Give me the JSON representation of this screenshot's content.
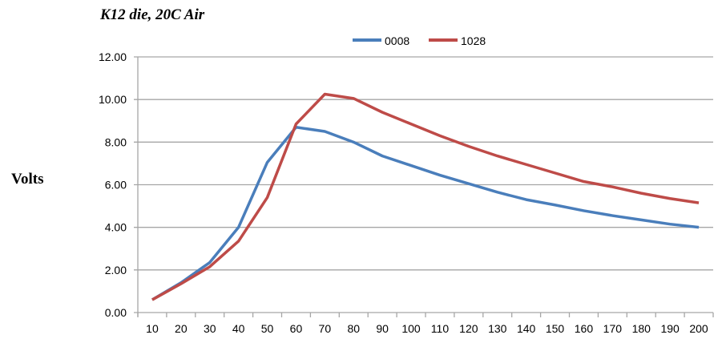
{
  "chart_data": {
    "type": "line",
    "title": "K12 die, 20C Air",
    "xlabel": "",
    "ylabel": "Volts",
    "ylim": [
      0,
      12
    ],
    "yticks": [
      "0.00",
      "2.00",
      "4.00",
      "6.00",
      "8.00",
      "10.00",
      "12.00"
    ],
    "categories": [
      "10",
      "20",
      "30",
      "40",
      "50",
      "60",
      "70",
      "80",
      "90",
      "100",
      "110",
      "120",
      "130",
      "140",
      "150",
      "160",
      "170",
      "180",
      "190",
      "200"
    ],
    "grid": "horizontal",
    "legend": "top-center",
    "series": [
      {
        "name": "0008",
        "color": "#4a7ebb",
        "values": [
          0.6,
          1.4,
          2.35,
          4.0,
          7.05,
          8.7,
          8.5,
          8.0,
          7.35,
          6.9,
          6.45,
          6.05,
          5.65,
          5.3,
          5.05,
          4.78,
          4.55,
          4.35,
          4.15,
          4.0
        ]
      },
      {
        "name": "1028",
        "color": "#be4b48",
        "values": [
          0.6,
          1.35,
          2.15,
          3.35,
          5.4,
          8.85,
          10.25,
          10.05,
          9.4,
          8.85,
          8.3,
          7.8,
          7.35,
          6.95,
          6.55,
          6.15,
          5.9,
          5.6,
          5.35,
          5.15
        ]
      }
    ]
  }
}
